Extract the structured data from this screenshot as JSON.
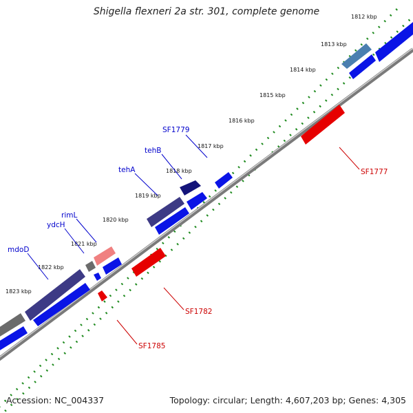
{
  "title": "Shigella flexneri 2a str. 301, complete genome",
  "accession": "Accession: NC_004337",
  "summary": "Topology: circular; Length: 4,607,203 bp; Genes: 4,305",
  "colors": {
    "backbone": "#8c8c8c",
    "tick_dots": "#1e8a1e",
    "forward_label": "#0000cc",
    "reverse_label": "#cc0000",
    "gene_blue": "#0a14e6",
    "gene_red": "#e60000",
    "gene_darkslate": "#3d3a85",
    "gene_gray": "#6b6b6b",
    "gene_steel": "#4a7fb0",
    "gene_pink": "#f08080",
    "gene_navy": "#14147a"
  },
  "ticks": [
    "1812 kbp",
    "1813 kbp",
    "1814 kbp",
    "1815 kbp",
    "1816 kbp",
    "1817 kbp",
    "1818 kbp",
    "1819 kbp",
    "1820 kbp",
    "1821 kbp",
    "1822 kbp",
    "1823 kbp"
  ],
  "forward_labels": [
    "SF1779",
    "tehB",
    "tehA",
    "rimL",
    "ydcH",
    "mdoD"
  ],
  "reverse_labels": [
    "SF1777",
    "SF1782",
    "SF1785"
  ]
}
